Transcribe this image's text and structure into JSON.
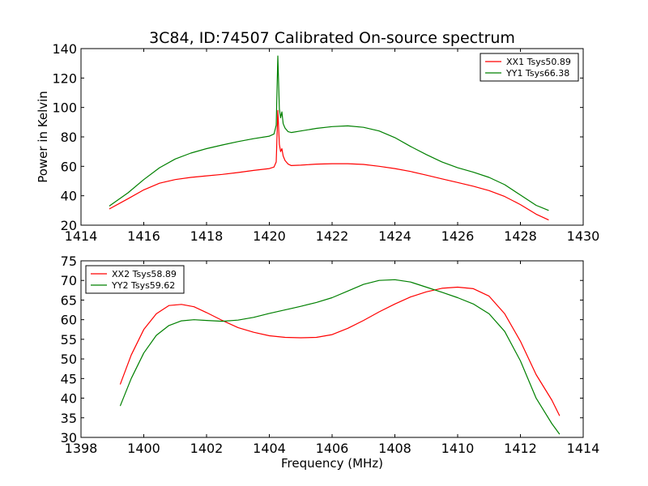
{
  "chart_data": [
    {
      "type": "line",
      "title": "3C84, ID:74507 Calibrated On-source spectrum",
      "xlabel": "",
      "ylabel": "Power in Kelvin",
      "xlim": [
        1414,
        1430
      ],
      "ylim": [
        20,
        140
      ],
      "xticks": [
        "1414",
        "1416",
        "1418",
        "1420",
        "1422",
        "1424",
        "1426",
        "1428",
        "1430"
      ],
      "yticks": [
        "20",
        "40",
        "60",
        "80",
        "100",
        "120",
        "140"
      ],
      "legend_position": "top-right",
      "grid": false,
      "series": [
        {
          "name": "XX1 Tsys50.89",
          "color": "#ff0000",
          "x": [
            1414.9,
            1415.5,
            1416.0,
            1416.5,
            1417.0,
            1417.5,
            1418.0,
            1418.5,
            1419.0,
            1419.5,
            1420.0,
            1420.15,
            1420.22,
            1420.27,
            1420.32,
            1420.36,
            1420.4,
            1420.44,
            1420.5,
            1420.6,
            1420.7,
            1421.0,
            1421.5,
            1422.0,
            1422.5,
            1423.0,
            1423.5,
            1424.0,
            1424.5,
            1425.0,
            1425.5,
            1426.0,
            1426.5,
            1427.0,
            1427.5,
            1428.0,
            1428.5,
            1428.9
          ],
          "y": [
            31,
            38,
            44,
            48.5,
            51,
            52.5,
            53.5,
            54.5,
            55.8,
            57.2,
            58.5,
            59.5,
            63,
            98,
            75,
            70,
            72,
            67,
            64,
            61.5,
            60.5,
            60.8,
            61.5,
            61.8,
            61.8,
            61.3,
            60,
            58.5,
            56.5,
            54,
            51.5,
            49,
            46.5,
            43.5,
            39.5,
            34,
            27.5,
            23.5
          ]
        },
        {
          "name": "YY1 Tsys66.38",
          "color": "#008000",
          "x": [
            1414.9,
            1415.5,
            1416.0,
            1416.5,
            1417.0,
            1417.5,
            1418.0,
            1418.5,
            1419.0,
            1419.5,
            1420.0,
            1420.15,
            1420.22,
            1420.27,
            1420.32,
            1420.36,
            1420.4,
            1420.44,
            1420.5,
            1420.6,
            1420.7,
            1421.0,
            1421.5,
            1422.0,
            1422.5,
            1423.0,
            1423.5,
            1424.0,
            1424.5,
            1425.0,
            1425.5,
            1426.0,
            1426.5,
            1427.0,
            1427.5,
            1428.0,
            1428.5,
            1428.9
          ],
          "y": [
            33,
            42,
            51,
            59,
            65,
            69,
            72,
            74.5,
            76.8,
            78.8,
            80.5,
            82,
            88,
            135,
            99,
            93,
            97,
            89,
            86,
            83.5,
            83,
            84,
            85.8,
            87,
            87.5,
            86.5,
            84,
            79.5,
            73.5,
            68,
            63,
            59,
            56,
            52.5,
            47.5,
            40.5,
            33.5,
            30
          ]
        }
      ]
    },
    {
      "type": "line",
      "title": "",
      "xlabel": "Frequency (MHz)",
      "ylabel": "",
      "xlim": [
        1398,
        1414
      ],
      "ylim": [
        30,
        75
      ],
      "xticks": [
        "1398",
        "1400",
        "1402",
        "1404",
        "1406",
        "1408",
        "1410",
        "1412",
        "1414"
      ],
      "yticks": [
        "30",
        "35",
        "40",
        "45",
        "50",
        "55",
        "60",
        "65",
        "70",
        "75"
      ],
      "legend_position": "top-left",
      "grid": false,
      "series": [
        {
          "name": "XX2 Tsys58.89",
          "color": "#ff0000",
          "x": [
            1399.25,
            1399.6,
            1400.0,
            1400.4,
            1400.8,
            1401.2,
            1401.6,
            1402.0,
            1402.5,
            1403.0,
            1403.5,
            1404.0,
            1404.5,
            1405.0,
            1405.5,
            1406.0,
            1406.5,
            1407.0,
            1407.5,
            1408.0,
            1408.5,
            1409.0,
            1409.5,
            1410.0,
            1410.5,
            1411.0,
            1411.5,
            1412.0,
            1412.5,
            1413.0,
            1413.25
          ],
          "y": [
            43.5,
            51,
            57.5,
            61.5,
            63.6,
            63.9,
            63.3,
            61.8,
            59.8,
            58,
            56.8,
            55.9,
            55.5,
            55.4,
            55.5,
            56.2,
            57.8,
            59.8,
            62,
            64,
            65.8,
            67.1,
            68,
            68.3,
            67.9,
            66,
            61.5,
            54.5,
            46,
            39.5,
            35.5
          ]
        },
        {
          "name": "YY2 Tsys59.62",
          "color": "#008000",
          "x": [
            1399.25,
            1399.6,
            1400.0,
            1400.4,
            1400.8,
            1401.2,
            1401.6,
            1402.0,
            1402.5,
            1403.0,
            1403.5,
            1404.0,
            1404.5,
            1405.0,
            1405.5,
            1406.0,
            1406.5,
            1407.0,
            1407.5,
            1408.0,
            1408.5,
            1409.0,
            1409.5,
            1410.0,
            1410.5,
            1411.0,
            1411.5,
            1412.0,
            1412.5,
            1413.0,
            1413.25
          ],
          "y": [
            38,
            45,
            51.5,
            56,
            58.5,
            59.7,
            60,
            59.8,
            59.6,
            59.9,
            60.6,
            61.6,
            62.5,
            63.4,
            64.4,
            65.6,
            67.3,
            69,
            70,
            70.2,
            69.6,
            68.3,
            67,
            65.6,
            64,
            61.5,
            57,
            49.5,
            40,
            33.5,
            30.8
          ]
        }
      ]
    }
  ]
}
